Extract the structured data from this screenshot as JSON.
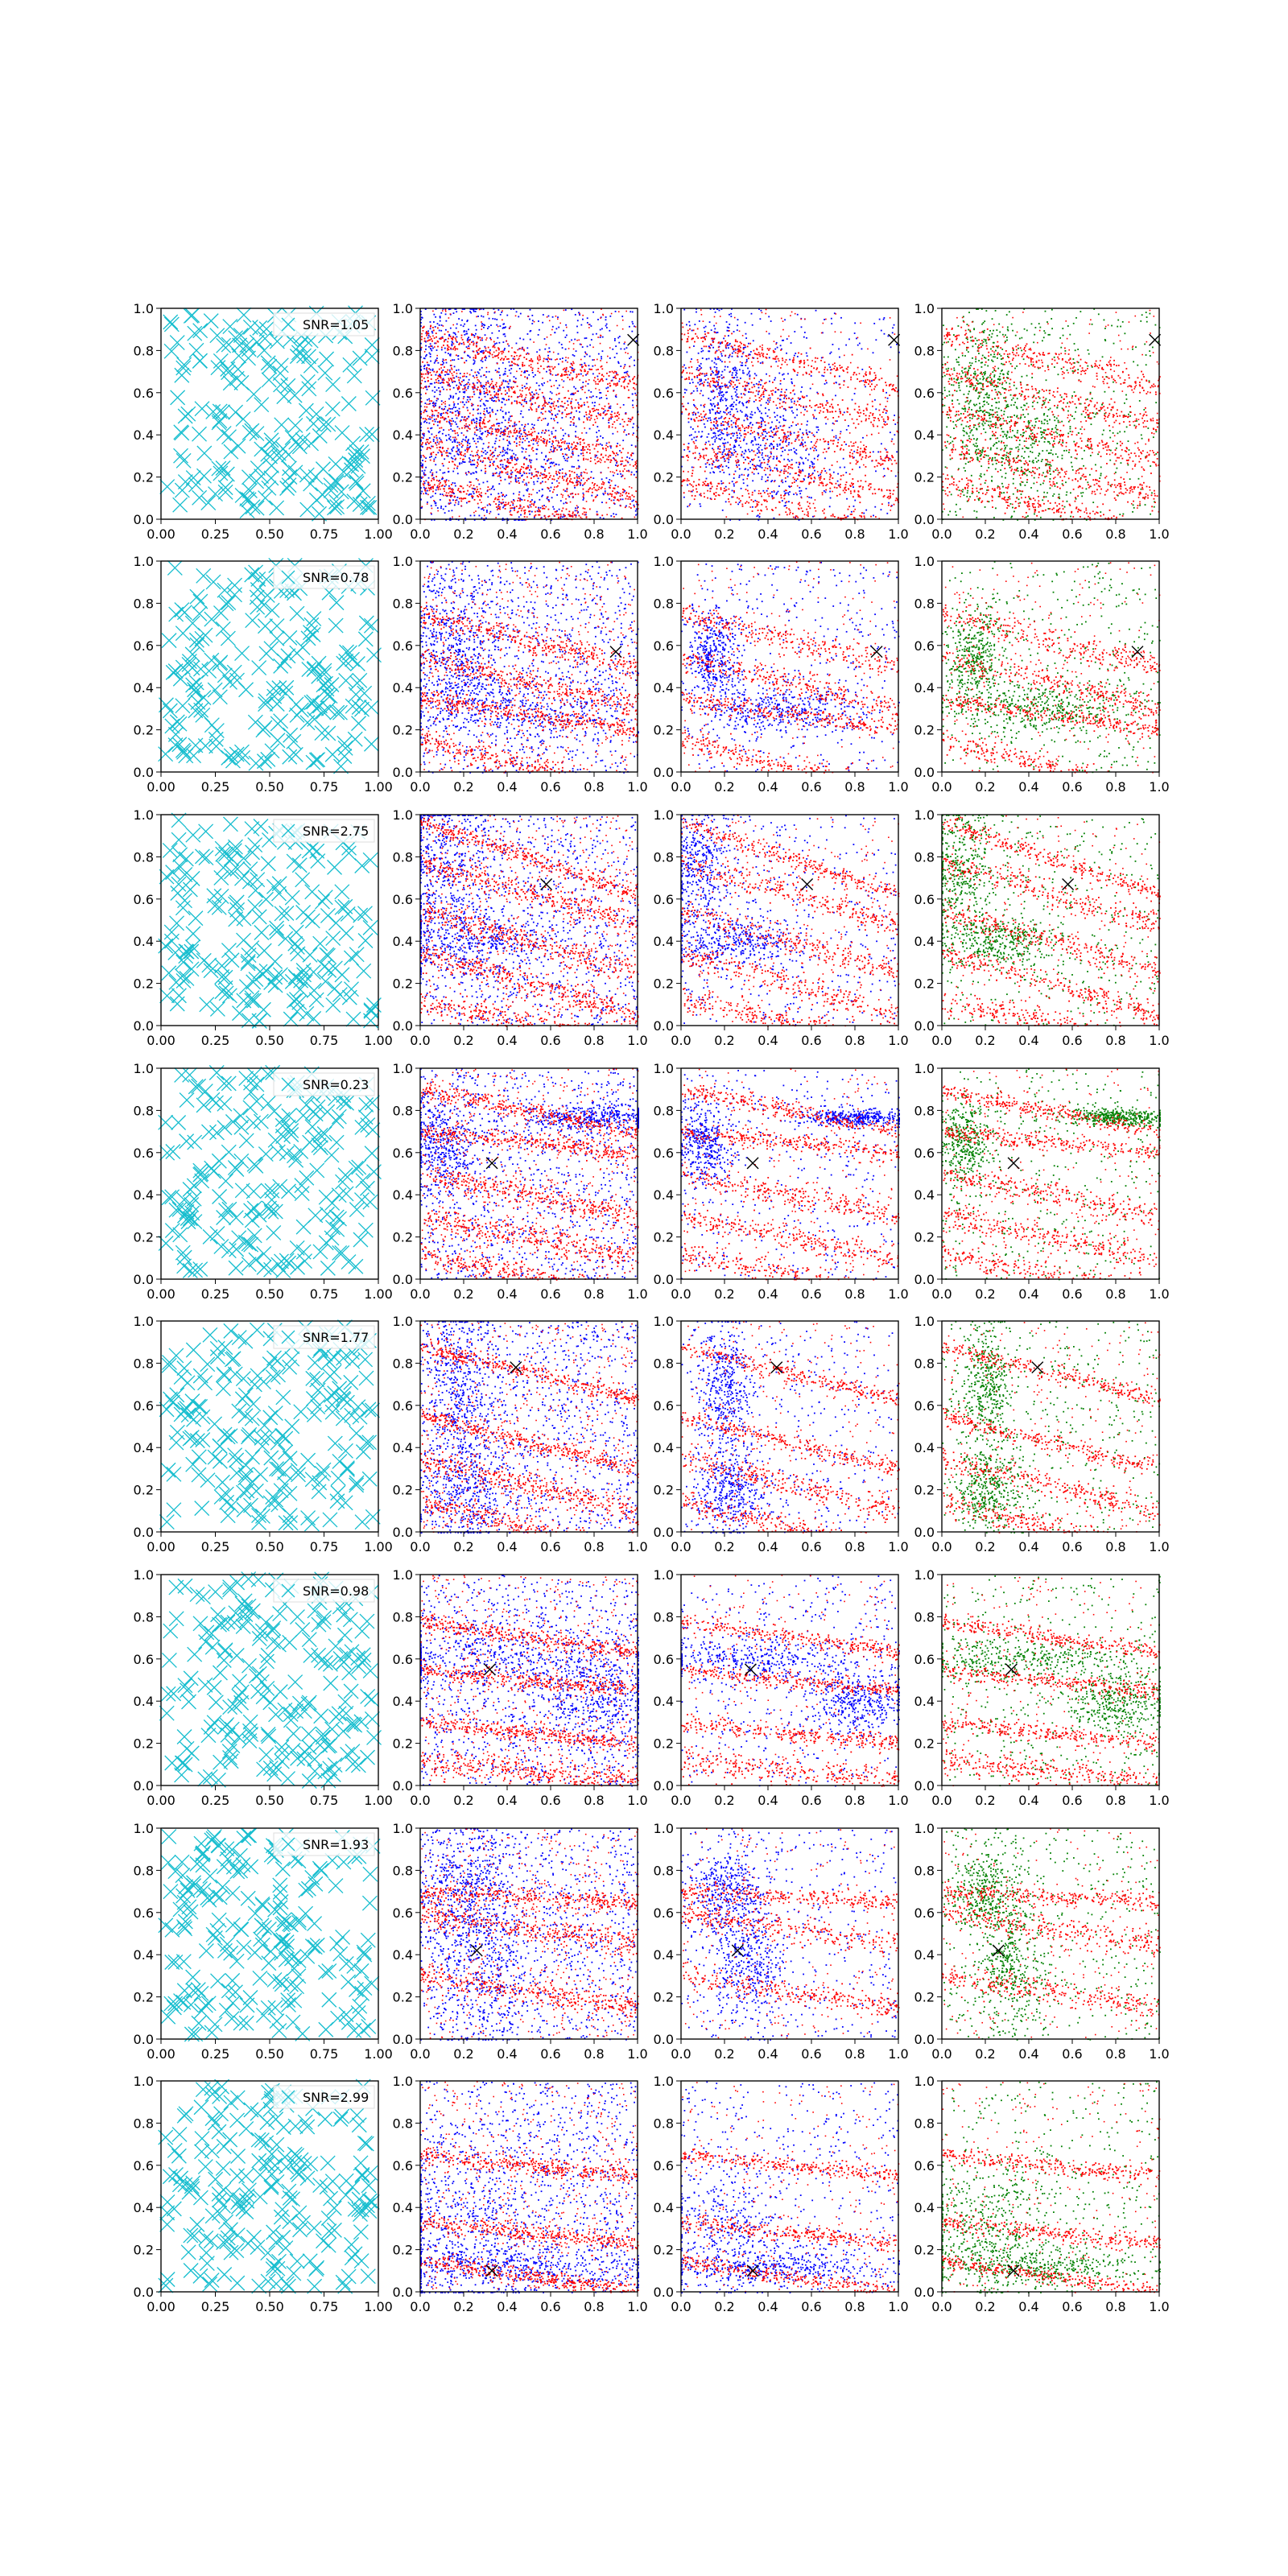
{
  "figure": {
    "background": "#ffffff"
  },
  "colors": {
    "cyan": "#17becf",
    "red": "#ff0000",
    "blue": "#0000ff",
    "green": "#008000",
    "black": "#000000"
  },
  "chart_data": {
    "type": "scatter",
    "grid": false,
    "columns": [
      {
        "kind": "random_x_markers",
        "color": "cyan",
        "marker": "x",
        "xlim": [
          0,
          1
        ],
        "ylim": [
          0,
          1
        ],
        "xticks": [
          "0.00",
          "0.25",
          "0.50",
          "0.75",
          "1.00"
        ],
        "yticks": [
          "0.0",
          "0.2",
          "0.4",
          "0.6",
          "0.8",
          "1.0"
        ],
        "legend_loc": "upper right"
      },
      {
        "kind": "overlay",
        "colors": [
          "blue",
          "red"
        ],
        "xlim": [
          0,
          1
        ],
        "ylim": [
          0,
          1
        ],
        "xticks": [
          "0.0",
          "0.2",
          "0.4",
          "0.6",
          "0.8",
          "1.0"
        ],
        "yticks": [
          "0.0",
          "0.2",
          "0.4",
          "0.6",
          "0.8",
          "1.0"
        ]
      },
      {
        "kind": "overlay",
        "colors": [
          "blue",
          "red"
        ],
        "xlim": [
          0,
          1
        ],
        "ylim": [
          0,
          1
        ],
        "xticks": [
          "0.0",
          "0.2",
          "0.4",
          "0.6",
          "0.8",
          "1.0"
        ],
        "yticks": [
          "0.0",
          "0.2",
          "0.4",
          "0.6",
          "0.8",
          "1.0"
        ]
      },
      {
        "kind": "overlay",
        "colors": [
          "green",
          "red"
        ],
        "xlim": [
          0,
          1
        ],
        "ylim": [
          0,
          1
        ],
        "xticks": [
          "0.0",
          "0.2",
          "0.4",
          "0.6",
          "0.8",
          "1.0"
        ],
        "yticks": [
          "0.0",
          "0.2",
          "0.4",
          "0.6",
          "0.8",
          "1.0"
        ]
      }
    ],
    "rows": [
      {
        "snr_label": "SNR=1.05",
        "marker_x": [
          0.98,
          0.98
        ],
        "source_xy": [
          0.98,
          0.85
        ],
        "bands": [
          {
            "y0": 0.88,
            "slope": -0.25,
            "width": 0.03
          },
          {
            "y0": 0.7,
            "slope": -0.25,
            "width": 0.03
          },
          {
            "y0": 0.52,
            "slope": -0.25,
            "width": 0.03
          },
          {
            "y0": 0.35,
            "slope": -0.25,
            "width": 0.03
          },
          {
            "y0": 0.18,
            "slope": -0.25,
            "width": 0.03
          }
        ],
        "blue_clusters": [
          {
            "x": 0.18,
            "y": 0.6,
            "sx": 0.08,
            "sy": 0.18
          },
          {
            "x": 0.4,
            "y": 0.35,
            "sx": 0.15,
            "sy": 0.15
          }
        ]
      },
      {
        "snr_label": "SNR=0.78",
        "source_xy": [
          0.9,
          0.57
        ],
        "bands": [
          {
            "y0": 0.75,
            "slope": -0.25,
            "width": 0.03
          },
          {
            "y0": 0.55,
            "slope": -0.25,
            "width": 0.03
          },
          {
            "y0": 0.35,
            "slope": -0.15,
            "width": 0.02
          },
          {
            "y0": 0.15,
            "slope": -0.25,
            "width": 0.03
          }
        ],
        "blue_clusters": [
          {
            "x": 0.15,
            "y": 0.55,
            "sx": 0.06,
            "sy": 0.12
          },
          {
            "x": 0.45,
            "y": 0.3,
            "sx": 0.2,
            "sy": 0.06
          }
        ]
      },
      {
        "snr_label": "SNR=2.75",
        "source_xy": [
          0.58,
          0.67
        ],
        "bands": [
          {
            "y0": 0.97,
            "slope": -0.35,
            "width": 0.02
          },
          {
            "y0": 0.78,
            "slope": -0.3,
            "width": 0.03
          },
          {
            "y0": 0.55,
            "slope": -0.3,
            "width": 0.03
          },
          {
            "y0": 0.35,
            "slope": -0.3,
            "width": 0.03
          },
          {
            "y0": 0.12,
            "slope": -0.2,
            "width": 0.03
          }
        ],
        "blue_clusters": [
          {
            "x": 0.08,
            "y": 0.75,
            "sx": 0.08,
            "sy": 0.15
          },
          {
            "x": 0.25,
            "y": 0.4,
            "sx": 0.15,
            "sy": 0.06
          }
        ]
      },
      {
        "snr_label": "SNR=0.23",
        "source_xy": [
          0.33,
          0.55
        ],
        "bands": [
          {
            "y0": 0.9,
            "slope": -0.2,
            "width": 0.02
          },
          {
            "y0": 0.7,
            "slope": -0.1,
            "width": 0.02
          },
          {
            "y0": 0.5,
            "slope": -0.2,
            "width": 0.03
          },
          {
            "y0": 0.3,
            "slope": -0.2,
            "width": 0.03
          },
          {
            "y0": 0.12,
            "slope": -0.2,
            "width": 0.03
          }
        ],
        "blue_clusters": [
          {
            "x": 0.8,
            "y": 0.77,
            "sx": 0.12,
            "sy": 0.02
          },
          {
            "x": 0.1,
            "y": 0.65,
            "sx": 0.06,
            "sy": 0.1
          }
        ]
      },
      {
        "snr_label": "SNR=1.77",
        "source_xy": [
          0.44,
          0.78
        ],
        "bands": [
          {
            "y0": 0.88,
            "slope": -0.25,
            "width": 0.02
          },
          {
            "y0": 0.55,
            "slope": -0.25,
            "width": 0.02
          },
          {
            "y0": 0.35,
            "slope": -0.25,
            "width": 0.03
          },
          {
            "y0": 0.15,
            "slope": -0.25,
            "width": 0.03
          }
        ],
        "blue_clusters": [
          {
            "x": 0.2,
            "y": 0.7,
            "sx": 0.06,
            "sy": 0.15
          },
          {
            "x": 0.22,
            "y": 0.2,
            "sx": 0.08,
            "sy": 0.1
          }
        ]
      },
      {
        "snr_label": "SNR=0.98",
        "source_xy": [
          0.32,
          0.55
        ],
        "bands": [
          {
            "y0": 0.78,
            "slope": -0.15,
            "width": 0.02
          },
          {
            "y0": 0.55,
            "slope": -0.1,
            "width": 0.02
          },
          {
            "y0": 0.3,
            "slope": -0.1,
            "width": 0.02
          },
          {
            "y0": 0.12,
            "slope": -0.1,
            "width": 0.03
          }
        ],
        "blue_clusters": [
          {
            "x": 0.35,
            "y": 0.6,
            "sx": 0.25,
            "sy": 0.05
          },
          {
            "x": 0.8,
            "y": 0.4,
            "sx": 0.12,
            "sy": 0.08
          }
        ]
      },
      {
        "snr_label": "SNR=1.93",
        "source_xy": [
          0.26,
          0.42
        ],
        "bands": [
          {
            "y0": 0.7,
            "slope": -0.05,
            "width": 0.02
          },
          {
            "y0": 0.6,
            "slope": -0.15,
            "width": 0.03
          },
          {
            "y0": 0.3,
            "slope": -0.15,
            "width": 0.03
          }
        ],
        "blue_clusters": [
          {
            "x": 0.2,
            "y": 0.7,
            "sx": 0.08,
            "sy": 0.1
          },
          {
            "x": 0.3,
            "y": 0.35,
            "sx": 0.08,
            "sy": 0.15
          }
        ]
      },
      {
        "snr_label": "SNR=2.99",
        "source_xy": [
          0.33,
          0.1
        ],
        "bands": [
          {
            "y0": 0.65,
            "slope": -0.1,
            "width": 0.02
          },
          {
            "y0": 0.33,
            "slope": -0.1,
            "width": 0.02
          },
          {
            "y0": 0.15,
            "slope": -0.15,
            "width": 0.02
          }
        ],
        "blue_clusters": [
          {
            "x": 0.45,
            "y": 0.12,
            "sx": 0.25,
            "sy": 0.04
          },
          {
            "x": 0.2,
            "y": 0.3,
            "sx": 0.15,
            "sy": 0.15
          }
        ]
      }
    ]
  }
}
